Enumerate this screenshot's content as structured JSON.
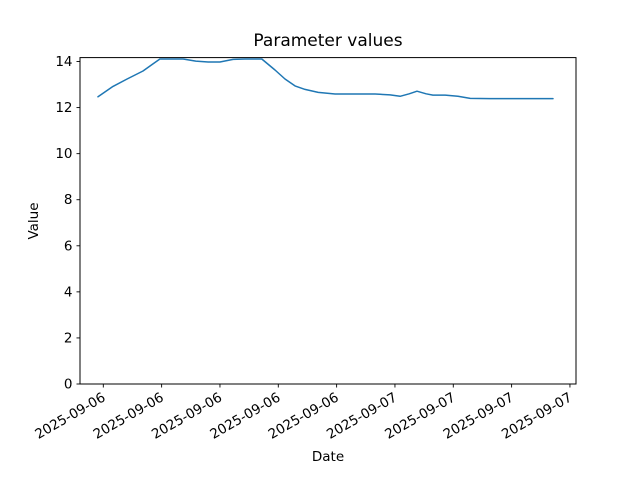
{
  "figure": {
    "background_color": "#ffffff",
    "text_color": "#000000"
  },
  "chart_data": {
    "type": "line",
    "title": "Parameter values",
    "xlabel": "Date",
    "ylabel": "Value",
    "grid": false,
    "legend": null,
    "line_color": "#1f77b4",
    "line_width": 1.5,
    "ylim": [
      0,
      14.17
    ],
    "y_ticks": [
      0,
      2,
      4,
      6,
      8,
      10,
      12,
      14
    ],
    "y_tick_labels": [
      "0",
      "2",
      "4",
      "6",
      "8",
      "10",
      "12",
      "14"
    ],
    "x_tick_labels": [
      "2025-09-06",
      "2025-09-06",
      "2025-09-06",
      "2025-09-06",
      "2025-09-06",
      "2025-09-07",
      "2025-09-07",
      "2025-09-07",
      "2025-09-07"
    ],
    "x_tick_rotation_deg": 30,
    "series": [
      {
        "name": "parameter-values-line",
        "x_fraction": [
          0.0,
          0.033,
          0.064,
          0.099,
          0.119,
          0.136,
          0.187,
          0.215,
          0.242,
          0.268,
          0.297,
          0.323,
          0.36,
          0.389,
          0.411,
          0.433,
          0.455,
          0.484,
          0.521,
          0.565,
          0.609,
          0.642,
          0.664,
          0.684,
          0.701,
          0.721,
          0.736,
          0.763,
          0.791,
          0.818,
          0.862,
          0.916,
          1.0
        ],
        "values": [
          12.47,
          12.92,
          13.24,
          13.59,
          13.87,
          14.11,
          14.11,
          14.02,
          13.98,
          13.98,
          14.09,
          14.11,
          14.11,
          13.63,
          13.24,
          12.94,
          12.79,
          12.66,
          12.59,
          12.59,
          12.59,
          12.55,
          12.49,
          12.6,
          12.71,
          12.6,
          12.54,
          12.54,
          12.49,
          12.4,
          12.39,
          12.39,
          12.39
        ]
      }
    ]
  }
}
